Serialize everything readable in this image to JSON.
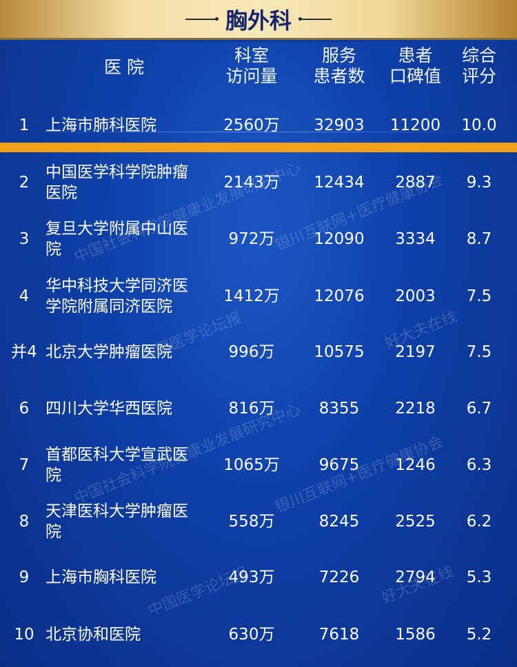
{
  "title": "胸外科",
  "headers": {
    "hospital": "医  院",
    "visits": "科室\n访问量",
    "patients": "服务\n患者数",
    "reputation": "患者\n口碑值",
    "score": "综合\n评分"
  },
  "colors": {
    "highlight": "#f0a21a",
    "background": "#0b3a9a",
    "banner_text": "#14256e"
  },
  "rows": [
    {
      "rank": "1",
      "name": "上海市肺科医院",
      "visits": "2560万",
      "patients": "32903",
      "reputation": "11200",
      "score": "10.0"
    },
    {
      "rank": "2",
      "name": "中国医学科学院肿瘤\n医院",
      "visits": "2143万",
      "patients": "12434",
      "reputation": "2887",
      "score": "9.3"
    },
    {
      "rank": "3",
      "name": "复旦大学附属中山医\n院",
      "visits": "972万",
      "patients": "12090",
      "reputation": "3334",
      "score": "8.7"
    },
    {
      "rank": "4",
      "name": "华中科技大学同济医\n学院附属同济医院",
      "visits": "1412万",
      "patients": "12076",
      "reputation": "2003",
      "score": "7.5"
    },
    {
      "rank": "并4",
      "name": "北京大学肿瘤医院",
      "visits": "996万",
      "patients": "10575",
      "reputation": "2197",
      "score": "7.5"
    },
    {
      "rank": "6",
      "name": "四川大学华西医院",
      "visits": "816万",
      "patients": "8355",
      "reputation": "2218",
      "score": "6.7"
    },
    {
      "rank": "7",
      "name": "首都医科大学宣武医\n院",
      "visits": "1065万",
      "patients": "9675",
      "reputation": "1246",
      "score": "6.3"
    },
    {
      "rank": "8",
      "name": "天津医科大学肿瘤医\n院",
      "visits": "558万",
      "patients": "8245",
      "reputation": "2525",
      "score": "6.2"
    },
    {
      "rank": "9",
      "name": "上海市胸科医院",
      "visits": "493万",
      "patients": "7226",
      "reputation": "2794",
      "score": "5.3"
    },
    {
      "rank": "10",
      "name": "北京协和医院",
      "visits": "630万",
      "patients": "7618",
      "reputation": "1586",
      "score": "5.2"
    }
  ],
  "watermarks": [
    "中国社会科学院健康业发展研究中心",
    "银川互联网+医疗健康协会",
    "中国医学论坛报",
    "好大夫在线"
  ]
}
